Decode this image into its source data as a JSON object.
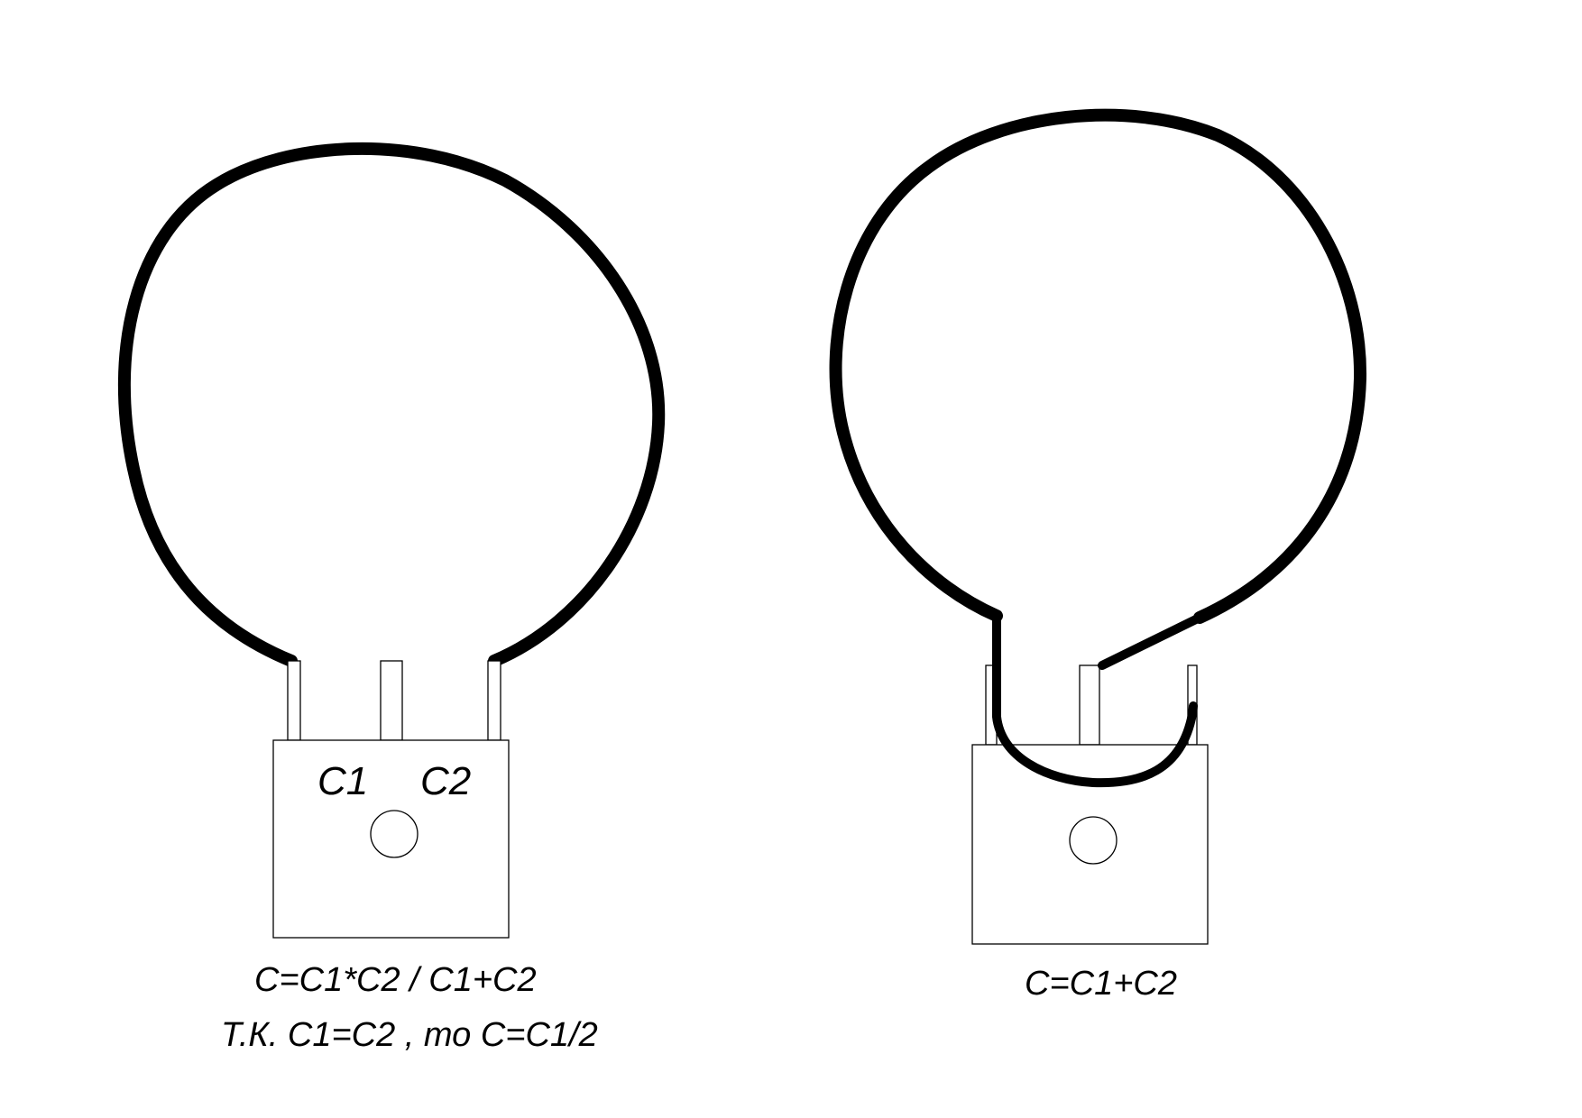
{
  "diagram": {
    "left_antenna": {
      "terminal_labels": [
        "C1",
        "C2"
      ],
      "formula_line_1": "C=C1*C2 / C1+C2",
      "formula_line_2": "Т.К. C1=C2 , то C=C1/2",
      "connection": "series"
    },
    "right_antenna": {
      "formula": "C=C1+C2",
      "connection": "parallel"
    },
    "colors": {
      "stroke": "#000000",
      "background": "#ffffff"
    }
  }
}
